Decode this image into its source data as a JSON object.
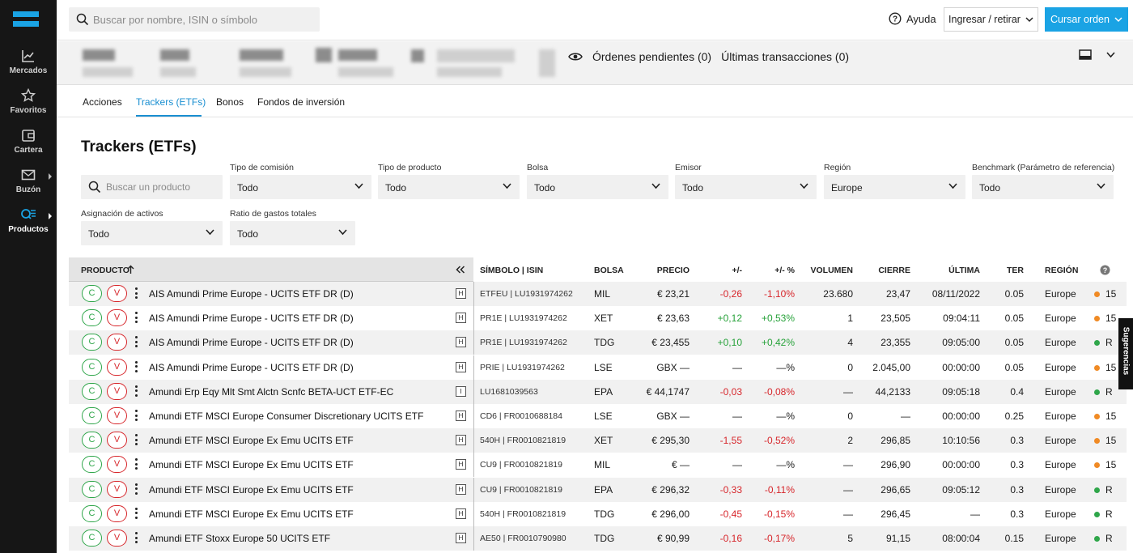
{
  "sidebar": {
    "items": [
      {
        "label": "Mercados",
        "icon": "chart-line-icon"
      },
      {
        "label": "Favoritos",
        "icon": "star-icon"
      },
      {
        "label": "Cartera",
        "icon": "wallet-icon"
      },
      {
        "label": "Buzón",
        "icon": "mail-icon"
      },
      {
        "label": "Productos",
        "icon": "products-icon"
      }
    ]
  },
  "topbar": {
    "search_placeholder": "Buscar por nombre, ISIN o símbolo",
    "help_label": "Ayuda",
    "deposit_label": "Ingresar / retirar",
    "order_label": "Cursar orden"
  },
  "account": {
    "pending_orders": "Órdenes pendientes (0)",
    "last_transactions": "Últimas transacciones (0)"
  },
  "tabs": [
    "Acciones",
    "Trackers (ETFs)",
    "Bonos",
    "Fondos de inversión"
  ],
  "page_title": "Trackers (ETFs)",
  "filters": {
    "search_placeholder": "Buscar un producto",
    "commission": {
      "label": "Tipo de comisión",
      "value": "Todo"
    },
    "product_type": {
      "label": "Tipo de producto",
      "value": "Todo"
    },
    "exchange": {
      "label": "Bolsa",
      "value": "Todo"
    },
    "issuer": {
      "label": "Emisor",
      "value": "Todo"
    },
    "region": {
      "label": "Región",
      "value": "Europe"
    },
    "benchmark": {
      "label": "Benchmark (Parámetro de referencia)",
      "value": "Todo"
    },
    "asset_allocation": {
      "label": "Asignación de activos",
      "value": "Todo"
    },
    "ter_ratio": {
      "label": "Ratio de gastos totales",
      "value": "Todo"
    }
  },
  "table": {
    "headers": {
      "product": "PRODUCTO",
      "symbol": "SÍMBOLO | ISIN",
      "exchange": "BOLSA",
      "price": "PRECIO",
      "change": "+/-",
      "change_pct": "+/- %",
      "volume": "VOLUMEN",
      "close": "CIERRE",
      "last": "ÚLTIMA",
      "ter": "TER",
      "region": "REGIÓN"
    },
    "buy_label": "C",
    "sell_label": "V",
    "rows": [
      {
        "name": "AIS Amundi Prime Europe - UCITS ETF DR (D)",
        "badge": "H",
        "symbol": "ETFEU | LU1931974262",
        "exchange": "MIL",
        "price": "€ 23,21",
        "change": "-0,26",
        "change_pct": "-1,10%",
        "trend": "neg",
        "volume": "23.680",
        "close": "23,47",
        "last": "08/11/2022",
        "ter": "0.05",
        "region": "Europe",
        "dot": "orange",
        "dot_label": "15"
      },
      {
        "name": "AIS Amundi Prime Europe - UCITS ETF DR (D)",
        "badge": "H",
        "symbol": "PR1E | LU1931974262",
        "exchange": "XET",
        "price": "€ 23,63",
        "change": "+0,12",
        "change_pct": "+0,53%",
        "trend": "pos",
        "volume": "1",
        "close": "23,505",
        "last": "09:04:11",
        "ter": "0.05",
        "region": "Europe",
        "dot": "orange",
        "dot_label": "15"
      },
      {
        "name": "AIS Amundi Prime Europe - UCITS ETF DR (D)",
        "badge": "H",
        "symbol": "PR1E | LU1931974262",
        "exchange": "TDG",
        "price": "€ 23,455",
        "change": "+0,10",
        "change_pct": "+0,42%",
        "trend": "pos",
        "volume": "4",
        "close": "23,355",
        "last": "09:05:00",
        "ter": "0.05",
        "region": "Europe",
        "dot": "green",
        "dot_label": "R"
      },
      {
        "name": "AIS Amundi Prime Europe - UCITS ETF DR (D)",
        "badge": "H",
        "symbol": "PRIE | LU1931974262",
        "exchange": "LSE",
        "price": "GBX —",
        "change": "—",
        "change_pct": "—%",
        "trend": "",
        "volume": "0",
        "close": "2.045,00",
        "last": "00:00:00",
        "ter": "0.05",
        "region": "Europe",
        "dot": "orange",
        "dot_label": "15"
      },
      {
        "name": "Amundi Erp Eqy Mlt Smt Alctn Scnfc BETA-UCT ETF-EC",
        "badge": "I",
        "symbol": "LU1681039563",
        "exchange": "EPA",
        "price": "€ 44,1747",
        "change": "-0,03",
        "change_pct": "-0,08%",
        "trend": "neg",
        "volume": "—",
        "close": "44,2133",
        "last": "09:05:18",
        "ter": "0.4",
        "region": "Europe",
        "dot": "green",
        "dot_label": "R"
      },
      {
        "name": "Amundi ETF MSCI Europe Consumer Discretionary UCITS ETF",
        "badge": "H",
        "symbol": "CD6 | FR0010688184",
        "exchange": "LSE",
        "price": "GBX —",
        "change": "—",
        "change_pct": "—%",
        "trend": "",
        "volume": "0",
        "close": "—",
        "last": "00:00:00",
        "ter": "0.25",
        "region": "Europe",
        "dot": "orange",
        "dot_label": "15"
      },
      {
        "name": "Amundi ETF MSCI Europe Ex Emu UCITS ETF",
        "badge": "H",
        "symbol": "540H | FR0010821819",
        "exchange": "XET",
        "price": "€ 295,30",
        "change": "-1,55",
        "change_pct": "-0,52%",
        "trend": "neg",
        "volume": "2",
        "close": "296,85",
        "last": "10:10:56",
        "ter": "0.3",
        "region": "Europe",
        "dot": "orange",
        "dot_label": "15"
      },
      {
        "name": "Amundi ETF MSCI Europe Ex Emu UCITS ETF",
        "badge": "H",
        "symbol": "CU9 | FR0010821819",
        "exchange": "MIL",
        "price": "€ —",
        "change": "—",
        "change_pct": "—%",
        "trend": "",
        "volume": "—",
        "close": "296,90",
        "last": "00:00:00",
        "ter": "0.3",
        "region": "Europe",
        "dot": "orange",
        "dot_label": "15"
      },
      {
        "name": "Amundi ETF MSCI Europe Ex Emu UCITS ETF",
        "badge": "H",
        "symbol": "CU9 | FR0010821819",
        "exchange": "EPA",
        "price": "€ 296,32",
        "change": "-0,33",
        "change_pct": "-0,11%",
        "trend": "neg",
        "volume": "—",
        "close": "296,65",
        "last": "09:05:12",
        "ter": "0.3",
        "region": "Europe",
        "dot": "green",
        "dot_label": "R"
      },
      {
        "name": "Amundi ETF MSCI Europe Ex Emu UCITS ETF",
        "badge": "H",
        "symbol": "540H | FR0010821819",
        "exchange": "TDG",
        "price": "€ 296,00",
        "change": "-0,45",
        "change_pct": "-0,15%",
        "trend": "neg",
        "volume": "—",
        "close": "296,45",
        "last": "—",
        "ter": "0.3",
        "region": "Europe",
        "dot": "green",
        "dot_label": "R"
      },
      {
        "name": "Amundi ETF Stoxx Europe 50 UCITS ETF",
        "badge": "H",
        "symbol": "AE50 | FR0010790980",
        "exchange": "TDG",
        "price": "€ 90,99",
        "change": "-0,16",
        "change_pct": "-0,17%",
        "trend": "neg",
        "volume": "5",
        "close": "91,15",
        "last": "08:00:04",
        "ter": "0.15",
        "region": "Europe",
        "dot": "green",
        "dot_label": "R"
      }
    ]
  },
  "suggestions_label": "Sugerencias",
  "colors": {
    "accent": "#1aa3e4",
    "sidebar": "#161616",
    "positive": "#27a23a",
    "negative": "#d7262b"
  }
}
